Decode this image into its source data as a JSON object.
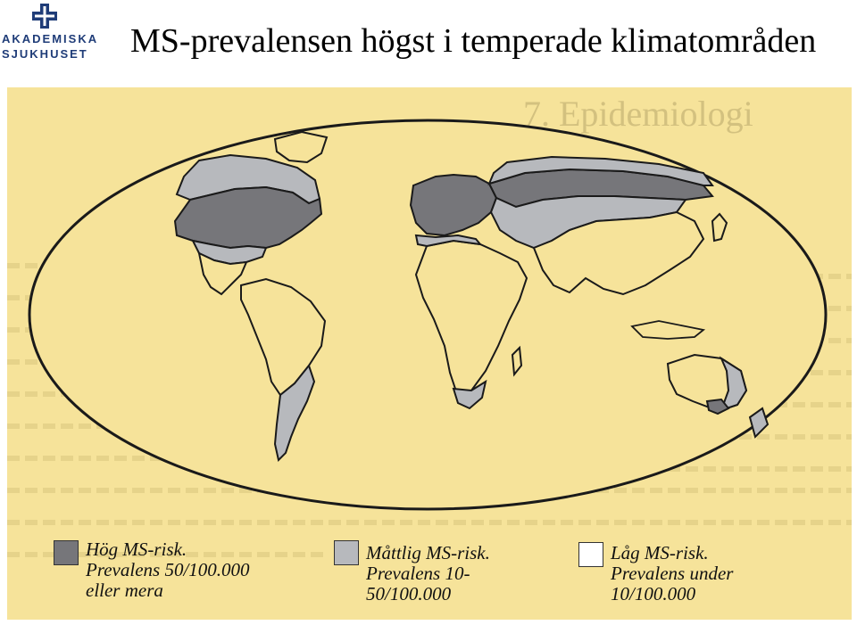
{
  "logo": {
    "line1": "AKADEMISKA",
    "line2": "SJUKHUSET",
    "icon": "medical-cross-logo",
    "color": "#1f3c78"
  },
  "title": "MS-prevalensen högst i temperade klimatområden",
  "scan": {
    "chapter_heading": "7. Epidemiologi",
    "background_color": "#f6e39a"
  },
  "map": {
    "colors": {
      "high": "#76767a",
      "moderate": "#b7b9bd",
      "low": "#f6e39a",
      "outline": "#1a1a1a"
    }
  },
  "legend": {
    "high": {
      "line1": "Hög MS-risk.",
      "line2": "Prevalens 50/100.000",
      "line3": "eller mera"
    },
    "moderate": {
      "line1": "Måttlig MS-risk.",
      "line2": "Prevalens 10-",
      "line3": "50/100.000"
    },
    "low": {
      "line1": "Låg MS-risk.",
      "line2": "Prevalens under",
      "line3": "10/100.000"
    }
  }
}
